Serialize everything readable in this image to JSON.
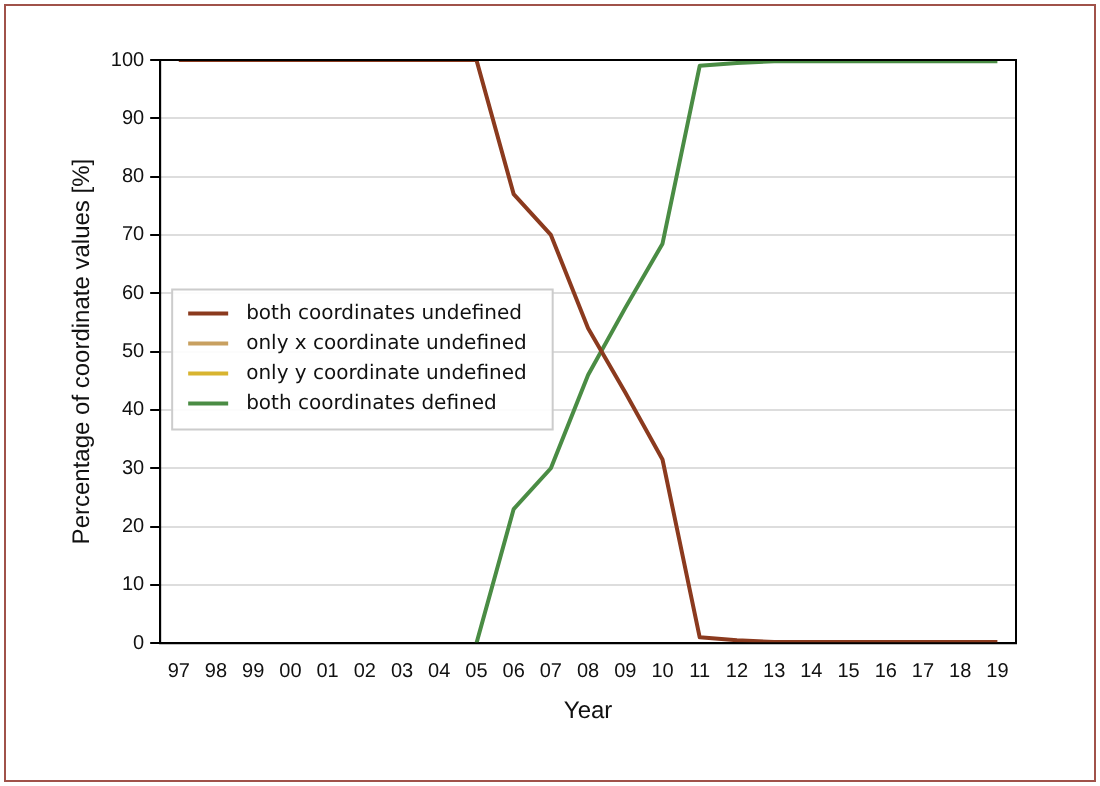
{
  "chart_data": {
    "type": "line",
    "xlabel": "Year",
    "ylabel": "Percentage of coordinate values [%]",
    "categories": [
      "97",
      "98",
      "99",
      "00",
      "01",
      "02",
      "03",
      "04",
      "05",
      "06",
      "07",
      "08",
      "09",
      "10",
      "11",
      "12",
      "13",
      "14",
      "15",
      "16",
      "17",
      "18",
      "19"
    ],
    "series": [
      {
        "name": "both coordinates undefined",
        "color": "#8b3a1e",
        "values": [
          100,
          100,
          100,
          100,
          100,
          100,
          100,
          100,
          100,
          77,
          70,
          54,
          43,
          31.5,
          1,
          0.5,
          0.2,
          0.2,
          0.2,
          0.2,
          0.2,
          0.2,
          0.2
        ]
      },
      {
        "name": "only x coordinate undefined",
        "color": "#c8a060",
        "values": [
          null,
          null,
          null,
          null,
          null,
          null,
          null,
          null,
          null,
          null,
          null,
          null,
          null,
          null,
          null,
          null,
          null,
          null,
          null,
          null,
          null,
          null,
          null
        ]
      },
      {
        "name": "only y coordinate undefined",
        "color": "#d8b430",
        "values": [
          null,
          null,
          null,
          null,
          null,
          null,
          null,
          null,
          null,
          null,
          null,
          null,
          null,
          null,
          null,
          null,
          null,
          null,
          null,
          null,
          null,
          null,
          null
        ]
      },
      {
        "name": "both coordinates defined",
        "color": "#4a8c44",
        "values": [
          null,
          null,
          null,
          null,
          null,
          null,
          null,
          null,
          0,
          23,
          30,
          46,
          57.5,
          68.5,
          99,
          99.5,
          99.8,
          99.8,
          99.8,
          99.8,
          99.8,
          99.8,
          99.8
        ]
      }
    ],
    "ylim": [
      0,
      100
    ],
    "yticks": [
      0,
      10,
      20,
      30,
      40,
      50,
      60,
      70,
      80,
      90,
      100
    ],
    "grid": "y",
    "legend": "left",
    "marker": "none",
    "line_style": "solid"
  }
}
